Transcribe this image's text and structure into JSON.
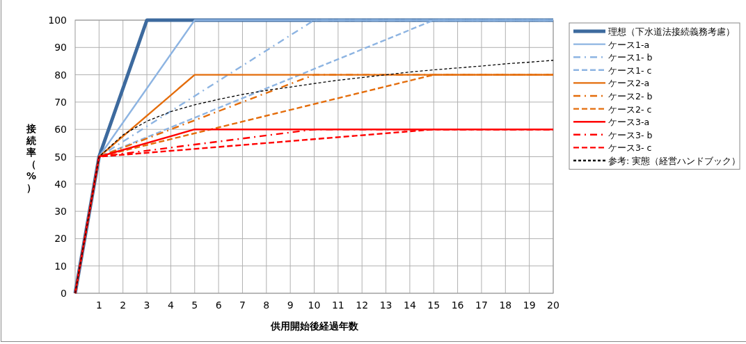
{
  "chart_data": {
    "type": "line",
    "xlabel": "供用開始後経過年数",
    "ylabel": "接続率（%）",
    "xlim": [
      0,
      20
    ],
    "ylim": [
      0,
      100
    ],
    "xticks": [
      1,
      2,
      3,
      4,
      5,
      6,
      7,
      8,
      9,
      10,
      11,
      12,
      13,
      14,
      15,
      16,
      17,
      18,
      19,
      20
    ],
    "yticks": [
      0,
      10,
      20,
      30,
      40,
      50,
      60,
      70,
      80,
      90,
      100
    ],
    "grid": true,
    "legend": "right",
    "series": [
      {
        "name": "理想（下水道法接続義務考慮）",
        "color": "#3d6a9e",
        "line_style": "solid",
        "x": [
          0,
          1,
          3,
          20
        ],
        "values": [
          0,
          50,
          100,
          100
        ]
      },
      {
        "name": "ケース1-a",
        "color": "#8db4e2",
        "line_style": "solid",
        "x": [
          0,
          1,
          5,
          20
        ],
        "values": [
          0,
          50,
          100,
          100
        ]
      },
      {
        "name": "ケース1- b",
        "color": "#8db4e2",
        "line_style": "dashdot",
        "x": [
          0,
          1,
          10,
          20
        ],
        "values": [
          0,
          50,
          100,
          100
        ]
      },
      {
        "name": "ケース1- c",
        "color": "#8db4e2",
        "line_style": "dashed",
        "x": [
          0,
          1,
          15,
          20
        ],
        "values": [
          0,
          50,
          100,
          100
        ]
      },
      {
        "name": "ケース2-a",
        "color": "#e46c0a",
        "line_style": "solid",
        "x": [
          0,
          1,
          5,
          20
        ],
        "values": [
          0,
          50,
          80,
          80
        ]
      },
      {
        "name": "ケース2- b",
        "color": "#e46c0a",
        "line_style": "dashdot",
        "x": [
          0,
          1,
          10,
          20
        ],
        "values": [
          0,
          50,
          80,
          80
        ]
      },
      {
        "name": "ケース2- c",
        "color": "#e46c0a",
        "line_style": "dashed",
        "x": [
          0,
          1,
          15,
          20
        ],
        "values": [
          0,
          50,
          80,
          80
        ]
      },
      {
        "name": "ケース3-a",
        "color": "#ff0000",
        "line_style": "solid",
        "x": [
          0,
          1,
          5,
          20
        ],
        "values": [
          0,
          50,
          60,
          60
        ]
      },
      {
        "name": "ケース3- b",
        "color": "#ff0000",
        "line_style": "dashdot",
        "x": [
          0,
          1,
          10,
          20
        ],
        "values": [
          0,
          50,
          60,
          60
        ]
      },
      {
        "name": "ケース3- c",
        "color": "#ff0000",
        "line_style": "dashed",
        "x": [
          0,
          1,
          15,
          20
        ],
        "values": [
          0,
          50,
          60,
          60
        ]
      },
      {
        "name": "参考: 実態（経営ハンドブック）",
        "color": "#000000",
        "line_style": "dotted",
        "x": [
          0,
          1,
          2,
          3,
          4,
          5,
          6,
          7,
          8,
          9,
          10,
          11,
          12,
          13,
          14,
          15,
          16,
          17,
          18,
          19,
          20
        ],
        "values": [
          0,
          50,
          58,
          63,
          66.5,
          69,
          71,
          72.8,
          74.3,
          75.5,
          76.8,
          78,
          79,
          80,
          81,
          81.8,
          82.5,
          83.2,
          84,
          84.6,
          85.3
        ]
      }
    ]
  }
}
